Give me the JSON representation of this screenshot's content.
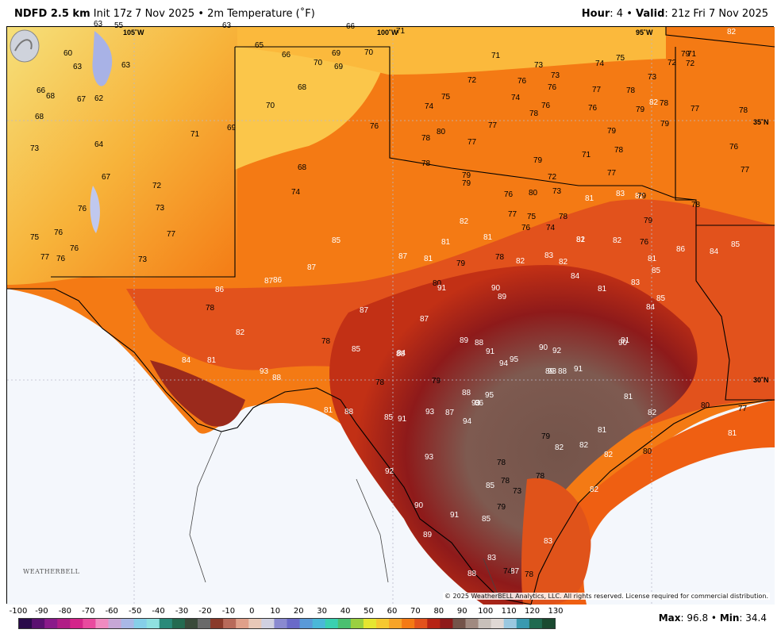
{
  "header": {
    "model": "NDFD 2.5 km",
    "init": "Init 17z 7 Nov 2025",
    "bullet": "•",
    "product": "2m Temperature (˚F)",
    "hour_label": "Hour",
    "hour_value": ": 4",
    "valid_label": "Valid",
    "valid_value": ": 21z Fri 7 Nov 2025"
  },
  "map": {
    "lon_labels": [
      "105˚W",
      "100˚W",
      "95˚W"
    ],
    "lat_labels": [
      "35˚N",
      "30˚N"
    ],
    "copyright": "© 2025 WeatherBELL Analytics, LLC. All rights reserved. License required for commercial distribution.",
    "logo_text": "WEATHERBELL",
    "temperatures": [
      "55",
      "63",
      "63",
      "60",
      "63",
      "63",
      "66",
      "68",
      "67",
      "62",
      "68",
      "73",
      "64",
      "67",
      "72",
      "73",
      "76",
      "76",
      "75",
      "77",
      "76",
      "77",
      "76",
      "73",
      "65",
      "66",
      "70",
      "69",
      "69",
      "70",
      "66",
      "68",
      "70",
      "69",
      "68",
      "71",
      "71",
      "74",
      "76",
      "78",
      "80",
      "78",
      "77",
      "77",
      "79",
      "79",
      "80",
      "79",
      "71",
      "73",
      "73",
      "74",
      "75",
      "73",
      "72",
      "71",
      "72",
      "72",
      "74",
      "75",
      "76",
      "76",
      "78",
      "74",
      "76",
      "76",
      "77",
      "78",
      "82",
      "78",
      "78",
      "79",
      "79",
      "79",
      "71",
      "72",
      "73",
      "77",
      "76",
      "77",
      "75",
      "78",
      "76",
      "74",
      "82",
      "81",
      "81",
      "81",
      "80",
      "79",
      "78",
      "82",
      "83",
      "82",
      "82",
      "81",
      "83",
      "82",
      "84",
      "81",
      "83",
      "85",
      "84",
      "81",
      "82",
      "79",
      "77",
      "78",
      "76",
      "77",
      "78",
      "79",
      "79",
      "76",
      "82",
      "81",
      "81",
      "86",
      "84",
      "85",
      "85",
      "87",
      "87",
      "86",
      "87",
      "86",
      "85",
      "87",
      "87",
      "88",
      "91",
      "90",
      "89",
      "89",
      "88",
      "91",
      "90",
      "89",
      "88",
      "90",
      "92",
      "91",
      "93",
      "95",
      "94",
      "95",
      "93",
      "94",
      "93",
      "91",
      "88",
      "93",
      "92",
      "90",
      "91",
      "89",
      "85",
      "83",
      "88",
      "87",
      "85",
      "78",
      "79",
      "73",
      "74",
      "78",
      "78",
      "78",
      "79",
      "82",
      "81",
      "82",
      "81",
      "82",
      "82",
      "80",
      "80",
      "77",
      "81",
      "82",
      "83",
      "81",
      "84",
      "82",
      "78",
      "78",
      "85",
      "84",
      "78",
      "79",
      "88",
      "86",
      "87",
      "85",
      "93",
      "88",
      "81"
    ]
  },
  "scale": {
    "ticks": [
      "-100",
      "-90",
      "-80",
      "-70",
      "-60",
      "-50",
      "-40",
      "-30",
      "-20",
      "-10",
      "0",
      "10",
      "20",
      "30",
      "40",
      "50",
      "60",
      "70",
      "80",
      "90",
      "100",
      "110",
      "120",
      "130"
    ]
  },
  "stats": {
    "max_label": "Max",
    "max_value": ": 96.8",
    "sep": "•",
    "min_label": "Min",
    "min_value": ": 34.4"
  },
  "colors": {
    "cool": "#fbc64a",
    "warm": "#f47a14",
    "hot": "#e2521c",
    "dark_red": "#8e1a1a",
    "brown": "#74544a",
    "gulf": "#ef5f12",
    "ocean": "#f4f7fc"
  }
}
